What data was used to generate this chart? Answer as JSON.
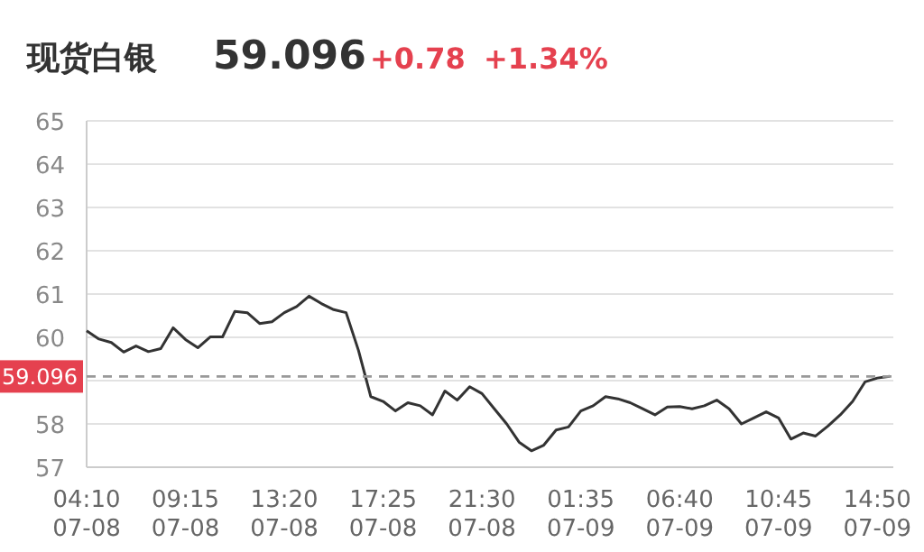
{
  "chart_data": {
    "type": "line",
    "title": "现货白银",
    "annotations": [
      "59.096",
      "+0.78",
      "+1.34%"
    ],
    "color": "#333333",
    "categories": [
      "04:10\n07-08",
      null,
      null,
      null,
      null,
      null,
      null,
      null,
      "09:15\n07-08",
      null,
      null,
      null,
      null,
      null,
      null,
      null,
      "13:20\n07-08",
      null,
      null,
      null,
      null,
      null,
      null,
      null,
      "17:25\n07-08",
      null,
      null,
      null,
      null,
      null,
      null,
      null,
      "21:30\n07-08",
      null,
      null,
      null,
      null,
      null,
      null,
      null,
      "01:35\n07-09",
      null,
      null,
      null,
      null,
      null,
      null,
      null,
      "06:40\n07-09",
      null,
      null,
      null,
      null,
      null,
      null,
      null,
      "10:45\n07-09",
      null,
      null,
      null,
      null,
      null,
      null,
      null,
      "14:50\n07-09",
      null
    ],
    "values": [
      60.15,
      59.96,
      59.88,
      59.66,
      59.8,
      59.67,
      59.74,
      60.22,
      59.95,
      59.76,
      60.01,
      60.01,
      60.6,
      60.57,
      60.32,
      60.36,
      60.57,
      60.71,
      60.95,
      60.78,
      60.64,
      60.57,
      59.7,
      58.63,
      58.52,
      58.3,
      58.49,
      58.42,
      58.21,
      58.76,
      58.55,
      58.86,
      58.7,
      58.35,
      58.0,
      57.58,
      57.38,
      57.51,
      57.86,
      57.93,
      58.3,
      58.42,
      58.63,
      58.58,
      58.49,
      58.35,
      58.21,
      58.39,
      58.4,
      58.35,
      58.42,
      58.55,
      58.35,
      58.0,
      58.14,
      58.28,
      58.14,
      57.65,
      57.79,
      57.72,
      57.95,
      58.21,
      58.52,
      58.97,
      59.06,
      59.1
    ],
    "ylim": [
      57,
      65
    ],
    "yticks": [
      57,
      58,
      {
        "value": 59,
        "label": null
      },
      60,
      61,
      62,
      63,
      64,
      65
    ],
    "grid": "y",
    "ref_lines": [
      {
        "axis": "y",
        "value": 59.096,
        "label": "59.096",
        "color": "#999999",
        "line_style": "dashed"
      }
    ]
  }
}
